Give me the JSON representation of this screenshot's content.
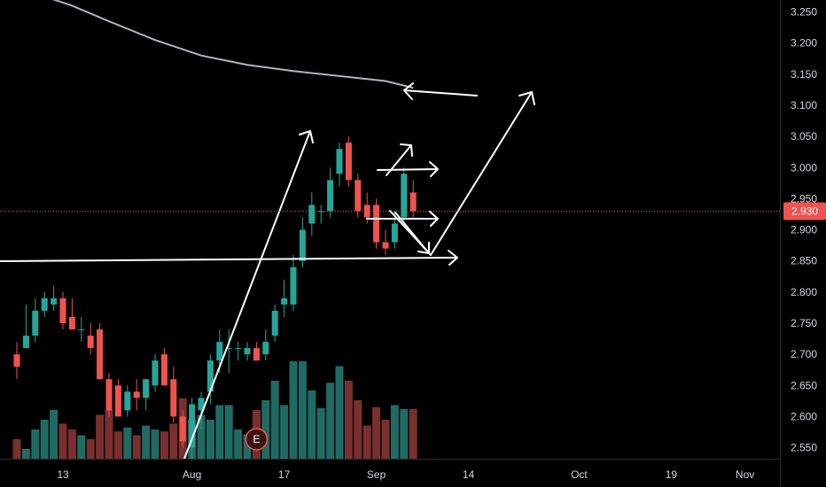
{
  "chart_data": {
    "type": "candlestick",
    "title": "",
    "xlabel": "",
    "ylabel": "",
    "ylim": [
      2.535,
      3.265
    ],
    "y_ticks": [
      "3.250",
      "3.200",
      "3.150",
      "3.100",
      "3.050",
      "3.000",
      "2.950",
      "2.900",
      "2.850",
      "2.800",
      "2.750",
      "2.700",
      "2.650",
      "2.600",
      "2.550"
    ],
    "x_ticks": [
      {
        "label": "13",
        "day": 0
      },
      {
        "label": "Aug",
        "day": 14
      },
      {
        "label": "17",
        "day": 24
      },
      {
        "label": "Sep",
        "day": 34
      },
      {
        "label": "14",
        "day": 44
      },
      {
        "label": "Oct",
        "day": 56
      },
      {
        "label": "19",
        "day": 66
      },
      {
        "label": "Nov",
        "day": 74
      }
    ],
    "last_price": {
      "label": "2.930",
      "value": 2.93
    },
    "earnings_marker": {
      "label": "E",
      "day": 21
    },
    "colors": {
      "up": "#26a69a",
      "down": "#ef5350",
      "vol_up": "#1f6b64",
      "vol_down": "#7a2f2f",
      "moving_average": "#b2b5be",
      "drawings": "#ffffff",
      "price_line": "#ef5350",
      "axis_text": "#d1d4dc"
    },
    "candles": [
      {
        "day": -5,
        "o": 2.7,
        "h": 2.72,
        "l": 2.66,
        "c": 2.68,
        "v": 0.2
      },
      {
        "day": -4,
        "o": 2.71,
        "h": 2.78,
        "l": 2.71,
        "c": 2.73,
        "v": 0.1
      },
      {
        "day": -3,
        "o": 2.73,
        "h": 2.79,
        "l": 2.72,
        "c": 2.77,
        "v": 0.3
      },
      {
        "day": -2,
        "o": 2.77,
        "h": 2.8,
        "l": 2.76,
        "c": 2.79,
        "v": 0.4
      },
      {
        "day": -1,
        "o": 2.78,
        "h": 2.81,
        "l": 2.77,
        "c": 2.79,
        "v": 0.5
      },
      {
        "day": 0,
        "o": 2.79,
        "h": 2.8,
        "l": 2.74,
        "c": 2.75,
        "v": 0.36
      },
      {
        "day": 1,
        "o": 2.76,
        "h": 2.79,
        "l": 2.74,
        "c": 2.74,
        "v": 0.3
      },
      {
        "day": 2,
        "o": 2.74,
        "h": 2.76,
        "l": 2.72,
        "c": 2.74,
        "v": 0.24
      },
      {
        "day": 3,
        "o": 2.73,
        "h": 2.75,
        "l": 2.7,
        "c": 2.71,
        "v": 0.2
      },
      {
        "day": 4,
        "o": 2.74,
        "h": 2.75,
        "l": 2.66,
        "c": 2.66,
        "v": 0.45
      },
      {
        "day": 5,
        "o": 2.66,
        "h": 2.67,
        "l": 2.6,
        "c": 2.61,
        "v": 0.5
      },
      {
        "day": 6,
        "o": 2.65,
        "h": 2.66,
        "l": 2.6,
        "c": 2.6,
        "v": 0.28
      },
      {
        "day": 7,
        "o": 2.61,
        "h": 2.65,
        "l": 2.6,
        "c": 2.64,
        "v": 0.32
      },
      {
        "day": 8,
        "o": 2.64,
        "h": 2.66,
        "l": 2.61,
        "c": 2.63,
        "v": 0.24
      },
      {
        "day": 9,
        "o": 2.63,
        "h": 2.66,
        "l": 2.61,
        "c": 2.66,
        "v": 0.34
      },
      {
        "day": 10,
        "o": 2.65,
        "h": 2.7,
        "l": 2.64,
        "c": 2.69,
        "v": 0.3
      },
      {
        "day": 11,
        "o": 2.7,
        "h": 2.71,
        "l": 2.65,
        "c": 2.65,
        "v": 0.28
      },
      {
        "day": 12,
        "o": 2.66,
        "h": 2.68,
        "l": 2.59,
        "c": 2.6,
        "v": 0.36
      },
      {
        "day": 13,
        "o": 2.6,
        "h": 2.61,
        "l": 2.55,
        "c": 2.56,
        "v": 0.62
      },
      {
        "day": 14,
        "o": 2.55,
        "h": 2.63,
        "l": 2.53,
        "c": 2.62,
        "v": 0.4
      },
      {
        "day": 15,
        "o": 2.61,
        "h": 2.64,
        "l": 2.58,
        "c": 2.63,
        "v": 0.45
      },
      {
        "day": 16,
        "o": 2.64,
        "h": 2.7,
        "l": 2.62,
        "c": 2.69,
        "v": 0.4
      },
      {
        "day": 17,
        "o": 2.69,
        "h": 2.74,
        "l": 2.67,
        "c": 2.72,
        "v": 0.55
      },
      {
        "day": 18,
        "o": 2.71,
        "h": 2.74,
        "l": 2.67,
        "c": 2.71,
        "v": 0.55
      },
      {
        "day": 19,
        "o": 2.71,
        "h": 2.72,
        "l": 2.69,
        "c": 2.71,
        "v": 0.3
      },
      {
        "day": 20,
        "o": 2.7,
        "h": 2.72,
        "l": 2.69,
        "c": 2.71,
        "v": 0.25
      },
      {
        "day": 21,
        "o": 2.71,
        "h": 2.72,
        "l": 2.69,
        "c": 2.69,
        "v": 0.5
      },
      {
        "day": 22,
        "o": 2.7,
        "h": 2.74,
        "l": 2.69,
        "c": 2.72,
        "v": 0.6
      },
      {
        "day": 23,
        "o": 2.73,
        "h": 2.78,
        "l": 2.72,
        "c": 2.77,
        "v": 0.8
      },
      {
        "day": 24,
        "o": 2.78,
        "h": 2.82,
        "l": 2.76,
        "c": 2.79,
        "v": 0.55
      },
      {
        "day": 25,
        "o": 2.78,
        "h": 2.86,
        "l": 2.77,
        "c": 2.84,
        "v": 1.0
      },
      {
        "day": 26,
        "o": 2.85,
        "h": 2.92,
        "l": 2.84,
        "c": 2.9,
        "v": 1.0
      },
      {
        "day": 27,
        "o": 2.91,
        "h": 2.96,
        "l": 2.89,
        "c": 2.94,
        "v": 0.7
      },
      {
        "day": 28,
        "o": 2.93,
        "h": 2.94,
        "l": 2.91,
        "c": 2.93,
        "v": 0.52
      },
      {
        "day": 29,
        "o": 2.93,
        "h": 3.0,
        "l": 2.92,
        "c": 2.98,
        "v": 0.78
      },
      {
        "day": 30,
        "o": 2.99,
        "h": 3.04,
        "l": 2.97,
        "c": 3.03,
        "v": 0.95
      },
      {
        "day": 31,
        "o": 3.04,
        "h": 3.05,
        "l": 2.97,
        "c": 2.98,
        "v": 0.8
      },
      {
        "day": 32,
        "o": 2.98,
        "h": 2.99,
        "l": 2.92,
        "c": 2.93,
        "v": 0.6
      },
      {
        "day": 33,
        "o": 2.94,
        "h": 2.96,
        "l": 2.91,
        "c": 2.92,
        "v": 0.34
      },
      {
        "day": 34,
        "o": 2.94,
        "h": 2.95,
        "l": 2.87,
        "c": 2.88,
        "v": 0.53
      },
      {
        "day": 35,
        "o": 2.88,
        "h": 2.9,
        "l": 2.86,
        "c": 2.87,
        "v": 0.4
      },
      {
        "day": 36,
        "o": 2.88,
        "h": 2.93,
        "l": 2.87,
        "c": 2.91,
        "v": 0.55
      },
      {
        "day": 37,
        "o": 2.92,
        "h": 3.0,
        "l": 2.91,
        "c": 2.99,
        "v": 0.51
      },
      {
        "day": 38,
        "o": 2.96,
        "h": 2.98,
        "l": 2.92,
        "c": 2.93,
        "v": 0.51
      }
    ],
    "moving_average": [
      {
        "day": -3,
        "value": 3.28
      },
      {
        "day": 1,
        "value": 3.26
      },
      {
        "day": 5,
        "value": 3.235
      },
      {
        "day": 10,
        "value": 3.205
      },
      {
        "day": 15,
        "value": 3.18
      },
      {
        "day": 20,
        "value": 3.165
      },
      {
        "day": 25,
        "value": 3.155
      },
      {
        "day": 30,
        "value": 3.147
      },
      {
        "day": 35,
        "value": 3.139
      },
      {
        "day": 38,
        "value": 3.128
      }
    ]
  }
}
